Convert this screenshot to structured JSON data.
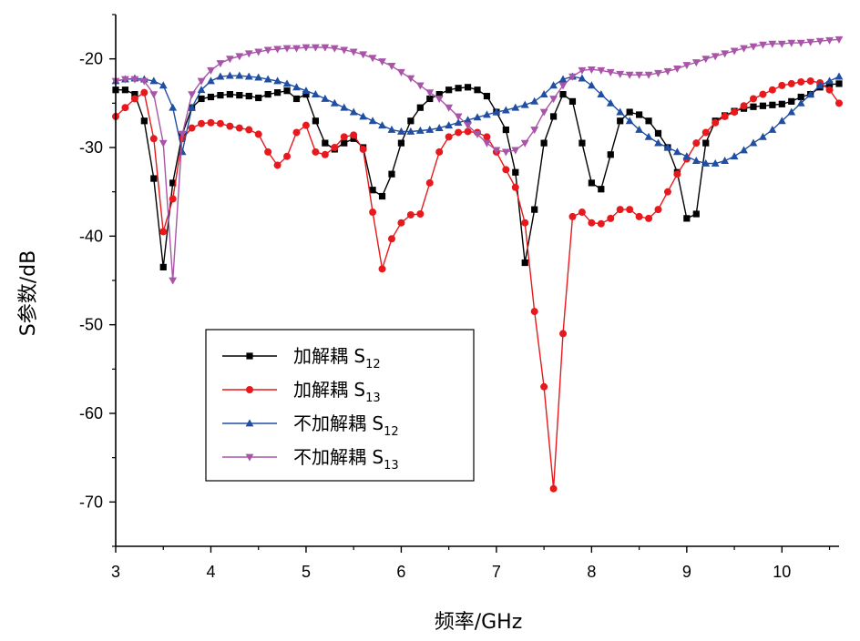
{
  "chart_data": {
    "type": "line",
    "xlabel": "频率/GHz",
    "ylabel": "S参数/dB",
    "xlim": [
      3,
      10.6
    ],
    "ylim": [
      -75,
      -15
    ],
    "xticks": [
      3,
      4,
      5,
      6,
      7,
      8,
      9,
      10
    ],
    "yticks": [
      -20,
      -30,
      -40,
      -50,
      -60,
      -70
    ],
    "xtick_labels": [
      "3",
      "4",
      "5",
      "6",
      "7",
      "8",
      "9",
      "10"
    ],
    "ytick_labels": [
      "-20",
      "-30",
      "-40",
      "-50",
      "-60",
      "-70"
    ],
    "grid": false,
    "legend_position": "lower-left",
    "series": [
      {
        "name": "加解耦 S",
        "name_sub": "12",
        "color": "#000000",
        "marker": "square",
        "x": [
          3.0,
          3.1,
          3.2,
          3.3,
          3.4,
          3.5,
          3.6,
          3.7,
          3.8,
          3.9,
          4.0,
          4.1,
          4.2,
          4.3,
          4.4,
          4.5,
          4.6,
          4.7,
          4.8,
          4.9,
          5.0,
          5.1,
          5.2,
          5.3,
          5.4,
          5.5,
          5.6,
          5.7,
          5.8,
          5.9,
          6.0,
          6.1,
          6.2,
          6.3,
          6.4,
          6.5,
          6.6,
          6.7,
          6.8,
          6.9,
          7.0,
          7.1,
          7.2,
          7.3,
          7.4,
          7.5,
          7.6,
          7.7,
          7.8,
          7.9,
          8.0,
          8.1,
          8.2,
          8.3,
          8.4,
          8.5,
          8.6,
          8.7,
          8.8,
          8.9,
          9.0,
          9.1,
          9.2,
          9.3,
          9.4,
          9.5,
          9.6,
          9.7,
          9.8,
          9.9,
          10.0,
          10.1,
          10.2,
          10.3,
          10.4,
          10.5,
          10.6
        ],
        "y": [
          -23.5,
          -23.5,
          -24,
          -27,
          -33.5,
          -43.5,
          -34,
          -28.5,
          -25.5,
          -24.5,
          -24.3,
          -24.1,
          -24.0,
          -24.1,
          -24.2,
          -24.4,
          -24.0,
          -23.8,
          -23.6,
          -24.5,
          -24,
          -27,
          -29.5,
          -30.2,
          -29.5,
          -29,
          -30,
          -34.8,
          -35.5,
          -33,
          -29.5,
          -27,
          -25.5,
          -24.5,
          -24,
          -23.5,
          -23.3,
          -23.2,
          -23.5,
          -24.2,
          -26,
          -28,
          -32.8,
          -43,
          -37,
          -29.5,
          -26.5,
          -24,
          -24.8,
          -29.5,
          -34,
          -34.7,
          -30.8,
          -27,
          -26,
          -26.3,
          -27,
          -28.4,
          -30,
          -32.8,
          -38,
          -37.5,
          -29.5,
          -27,
          -26.4,
          -25.9,
          -25.6,
          -25.4,
          -25.3,
          -25.2,
          -25.1,
          -24.8,
          -24.3,
          -24,
          -23.2,
          -22.9,
          -22.8
        ]
      },
      {
        "name": "加解耦 S",
        "name_sub": "13",
        "color": "#e8191c",
        "marker": "circle",
        "x": [
          3.0,
          3.1,
          3.2,
          3.3,
          3.4,
          3.5,
          3.6,
          3.7,
          3.8,
          3.9,
          4.0,
          4.1,
          4.2,
          4.3,
          4.4,
          4.5,
          4.6,
          4.7,
          4.8,
          4.9,
          5.0,
          5.1,
          5.2,
          5.3,
          5.4,
          5.5,
          5.6,
          5.7,
          5.8,
          5.9,
          6.0,
          6.1,
          6.2,
          6.3,
          6.4,
          6.5,
          6.6,
          6.7,
          6.8,
          6.9,
          7.0,
          7.1,
          7.2,
          7.3,
          7.4,
          7.5,
          7.6,
          7.7,
          7.8,
          7.9,
          8.0,
          8.1,
          8.2,
          8.3,
          8.4,
          8.5,
          8.6,
          8.7,
          8.8,
          8.9,
          9.0,
          9.1,
          9.2,
          9.3,
          9.4,
          9.5,
          9.6,
          9.7,
          9.8,
          9.9,
          10.0,
          10.1,
          10.2,
          10.3,
          10.4,
          10.5,
          10.6
        ],
        "y": [
          -26.5,
          -25.5,
          -24.5,
          -23.8,
          -29,
          -39.5,
          -35.8,
          -29,
          -27.8,
          -27.3,
          -27.2,
          -27.3,
          -27.6,
          -27.8,
          -28,
          -28.5,
          -30.5,
          -32,
          -31,
          -28.3,
          -27.5,
          -30.5,
          -30.8,
          -30,
          -28.8,
          -28.6,
          -30.2,
          -37.3,
          -43.7,
          -40.3,
          -38.5,
          -37.6,
          -37.5,
          -34,
          -30.5,
          -28.8,
          -28.3,
          -28.2,
          -28.3,
          -28.8,
          -30.5,
          -32.5,
          -34.5,
          -38.5,
          -48.5,
          -57,
          -68.5,
          -51,
          -37.8,
          -37.3,
          -38.5,
          -38.6,
          -38,
          -37,
          -37,
          -37.8,
          -38,
          -37,
          -35,
          -33,
          -31.3,
          -29.5,
          -28.3,
          -27.2,
          -26.5,
          -26,
          -25.3,
          -24.5,
          -24,
          -23.5,
          -23,
          -22.8,
          -22.6,
          -22.5,
          -22.7,
          -23.5,
          -25
        ]
      },
      {
        "name": "不加解耦 S",
        "name_sub": "12",
        "color": "#1f4ea3",
        "marker": "triangle-up",
        "x": [
          3.0,
          3.1,
          3.2,
          3.3,
          3.4,
          3.5,
          3.6,
          3.7,
          3.8,
          3.9,
          4.0,
          4.1,
          4.2,
          4.3,
          4.4,
          4.5,
          4.6,
          4.7,
          4.8,
          4.9,
          5.0,
          5.1,
          5.2,
          5.3,
          5.4,
          5.5,
          5.6,
          5.7,
          5.8,
          5.9,
          6.0,
          6.1,
          6.2,
          6.3,
          6.4,
          6.5,
          6.6,
          6.7,
          6.8,
          6.9,
          7.0,
          7.1,
          7.2,
          7.3,
          7.4,
          7.5,
          7.6,
          7.7,
          7.8,
          7.9,
          8.0,
          8.1,
          8.2,
          8.3,
          8.4,
          8.5,
          8.6,
          8.7,
          8.8,
          8.9,
          9.0,
          9.1,
          9.2,
          9.3,
          9.4,
          9.5,
          9.6,
          9.7,
          9.8,
          9.9,
          10.0,
          10.1,
          10.2,
          10.3,
          10.4,
          10.5,
          10.6
        ],
        "y": [
          -22.5,
          -22.3,
          -22.2,
          -22.3,
          -22.5,
          -23,
          -25.5,
          -30.5,
          -25.5,
          -23.5,
          -22.5,
          -22.0,
          -21.9,
          -21.9,
          -22.0,
          -22.1,
          -22.3,
          -22.5,
          -22.8,
          -23.2,
          -23.6,
          -24.0,
          -24.5,
          -25.0,
          -25.5,
          -26.0,
          -26.5,
          -27.0,
          -27.5,
          -28.0,
          -28.2,
          -28.2,
          -28.1,
          -28.0,
          -27.8,
          -27.5,
          -27.2,
          -26.9,
          -26.6,
          -26.3,
          -26.0,
          -25.8,
          -25.5,
          -25.2,
          -24.8,
          -24.0,
          -23.0,
          -22.3,
          -22.0,
          -22.2,
          -23.0,
          -24.0,
          -25.0,
          -26.0,
          -27.0,
          -28.0,
          -28.8,
          -29.5,
          -30.0,
          -30.5,
          -31.0,
          -31.5,
          -31.8,
          -31.8,
          -31.5,
          -31.0,
          -30.3,
          -29.5,
          -28.8,
          -28.0,
          -27.0,
          -26.0,
          -25.0,
          -24.0,
          -23.0,
          -22.5,
          -22.0
        ]
      },
      {
        "name": "不加解耦 S",
        "name_sub": "13",
        "color": "#a855a8",
        "marker": "triangle-down",
        "x": [
          3.0,
          3.1,
          3.2,
          3.3,
          3.4,
          3.5,
          3.6,
          3.7,
          3.8,
          3.9,
          4.0,
          4.1,
          4.2,
          4.3,
          4.4,
          4.5,
          4.6,
          4.7,
          4.8,
          4.9,
          5.0,
          5.1,
          5.2,
          5.3,
          5.4,
          5.5,
          5.6,
          5.7,
          5.8,
          5.9,
          6.0,
          6.1,
          6.2,
          6.3,
          6.4,
          6.5,
          6.6,
          6.7,
          6.8,
          6.9,
          7.0,
          7.1,
          7.2,
          7.3,
          7.4,
          7.5,
          7.6,
          7.7,
          7.8,
          7.9,
          8.0,
          8.1,
          8.2,
          8.3,
          8.4,
          8.5,
          8.6,
          8.7,
          8.8,
          8.9,
          9.0,
          9.1,
          9.2,
          9.3,
          9.4,
          9.5,
          9.6,
          9.7,
          9.8,
          9.9,
          10.0,
          10.1,
          10.2,
          10.3,
          10.4,
          10.5,
          10.6
        ],
        "y": [
          -22.5,
          -22.3,
          -22.3,
          -22.5,
          -24,
          -29.5,
          -45,
          -28.5,
          -24,
          -22.5,
          -21.3,
          -20.5,
          -20.0,
          -19.7,
          -19.4,
          -19.2,
          -19.0,
          -18.9,
          -18.8,
          -18.8,
          -18.7,
          -18.7,
          -18.7,
          -18.8,
          -19.0,
          -19.2,
          -19.5,
          -19.9,
          -20.3,
          -20.8,
          -21.5,
          -22.2,
          -23.0,
          -23.8,
          -24.5,
          -25.5,
          -26.5,
          -27.5,
          -28.5,
          -29.5,
          -30.3,
          -30.5,
          -30.3,
          -29.5,
          -28.0,
          -26.0,
          -24.5,
          -23.0,
          -22.0,
          -21.3,
          -21.2,
          -21.3,
          -21.5,
          -21.7,
          -21.8,
          -21.8,
          -21.8,
          -21.6,
          -21.4,
          -21.1,
          -20.7,
          -20.4,
          -20.0,
          -19.7,
          -19.4,
          -19.1,
          -18.8,
          -18.6,
          -18.4,
          -18.3,
          -18.3,
          -18.2,
          -18.2,
          -18.1,
          -18.0,
          -17.9,
          -17.8
        ]
      }
    ]
  }
}
